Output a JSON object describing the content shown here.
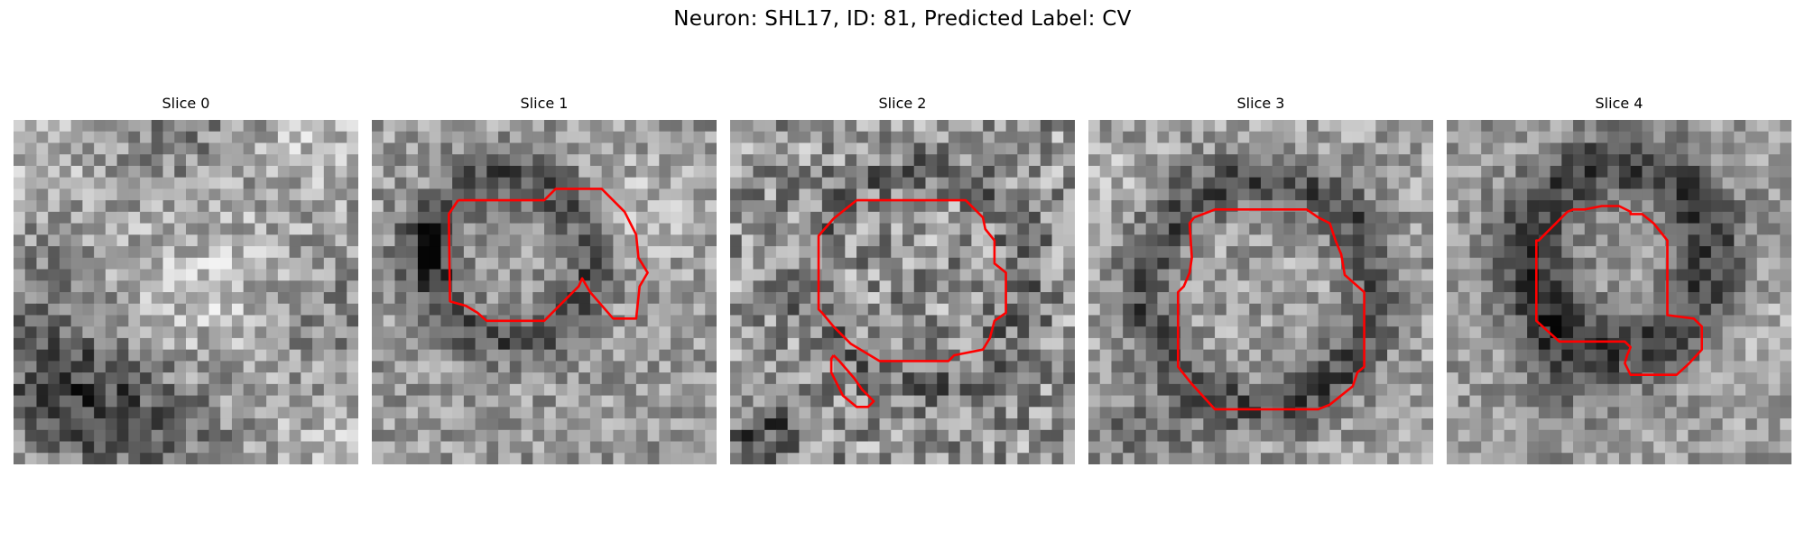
{
  "figure": {
    "title": "Neuron: SHL17, ID: 81, Predicted Label: CV"
  },
  "panels": [
    {
      "title": "Slice 0",
      "has_contour": false
    },
    {
      "title": "Slice 1",
      "has_contour": true
    },
    {
      "title": "Slice 2",
      "has_contour": true
    },
    {
      "title": "Slice 3",
      "has_contour": true
    },
    {
      "title": "Slice 4",
      "has_contour": true
    }
  ],
  "colors": {
    "contour": "#ff0000",
    "background": "#ffffff",
    "colormap": "grayscale"
  }
}
